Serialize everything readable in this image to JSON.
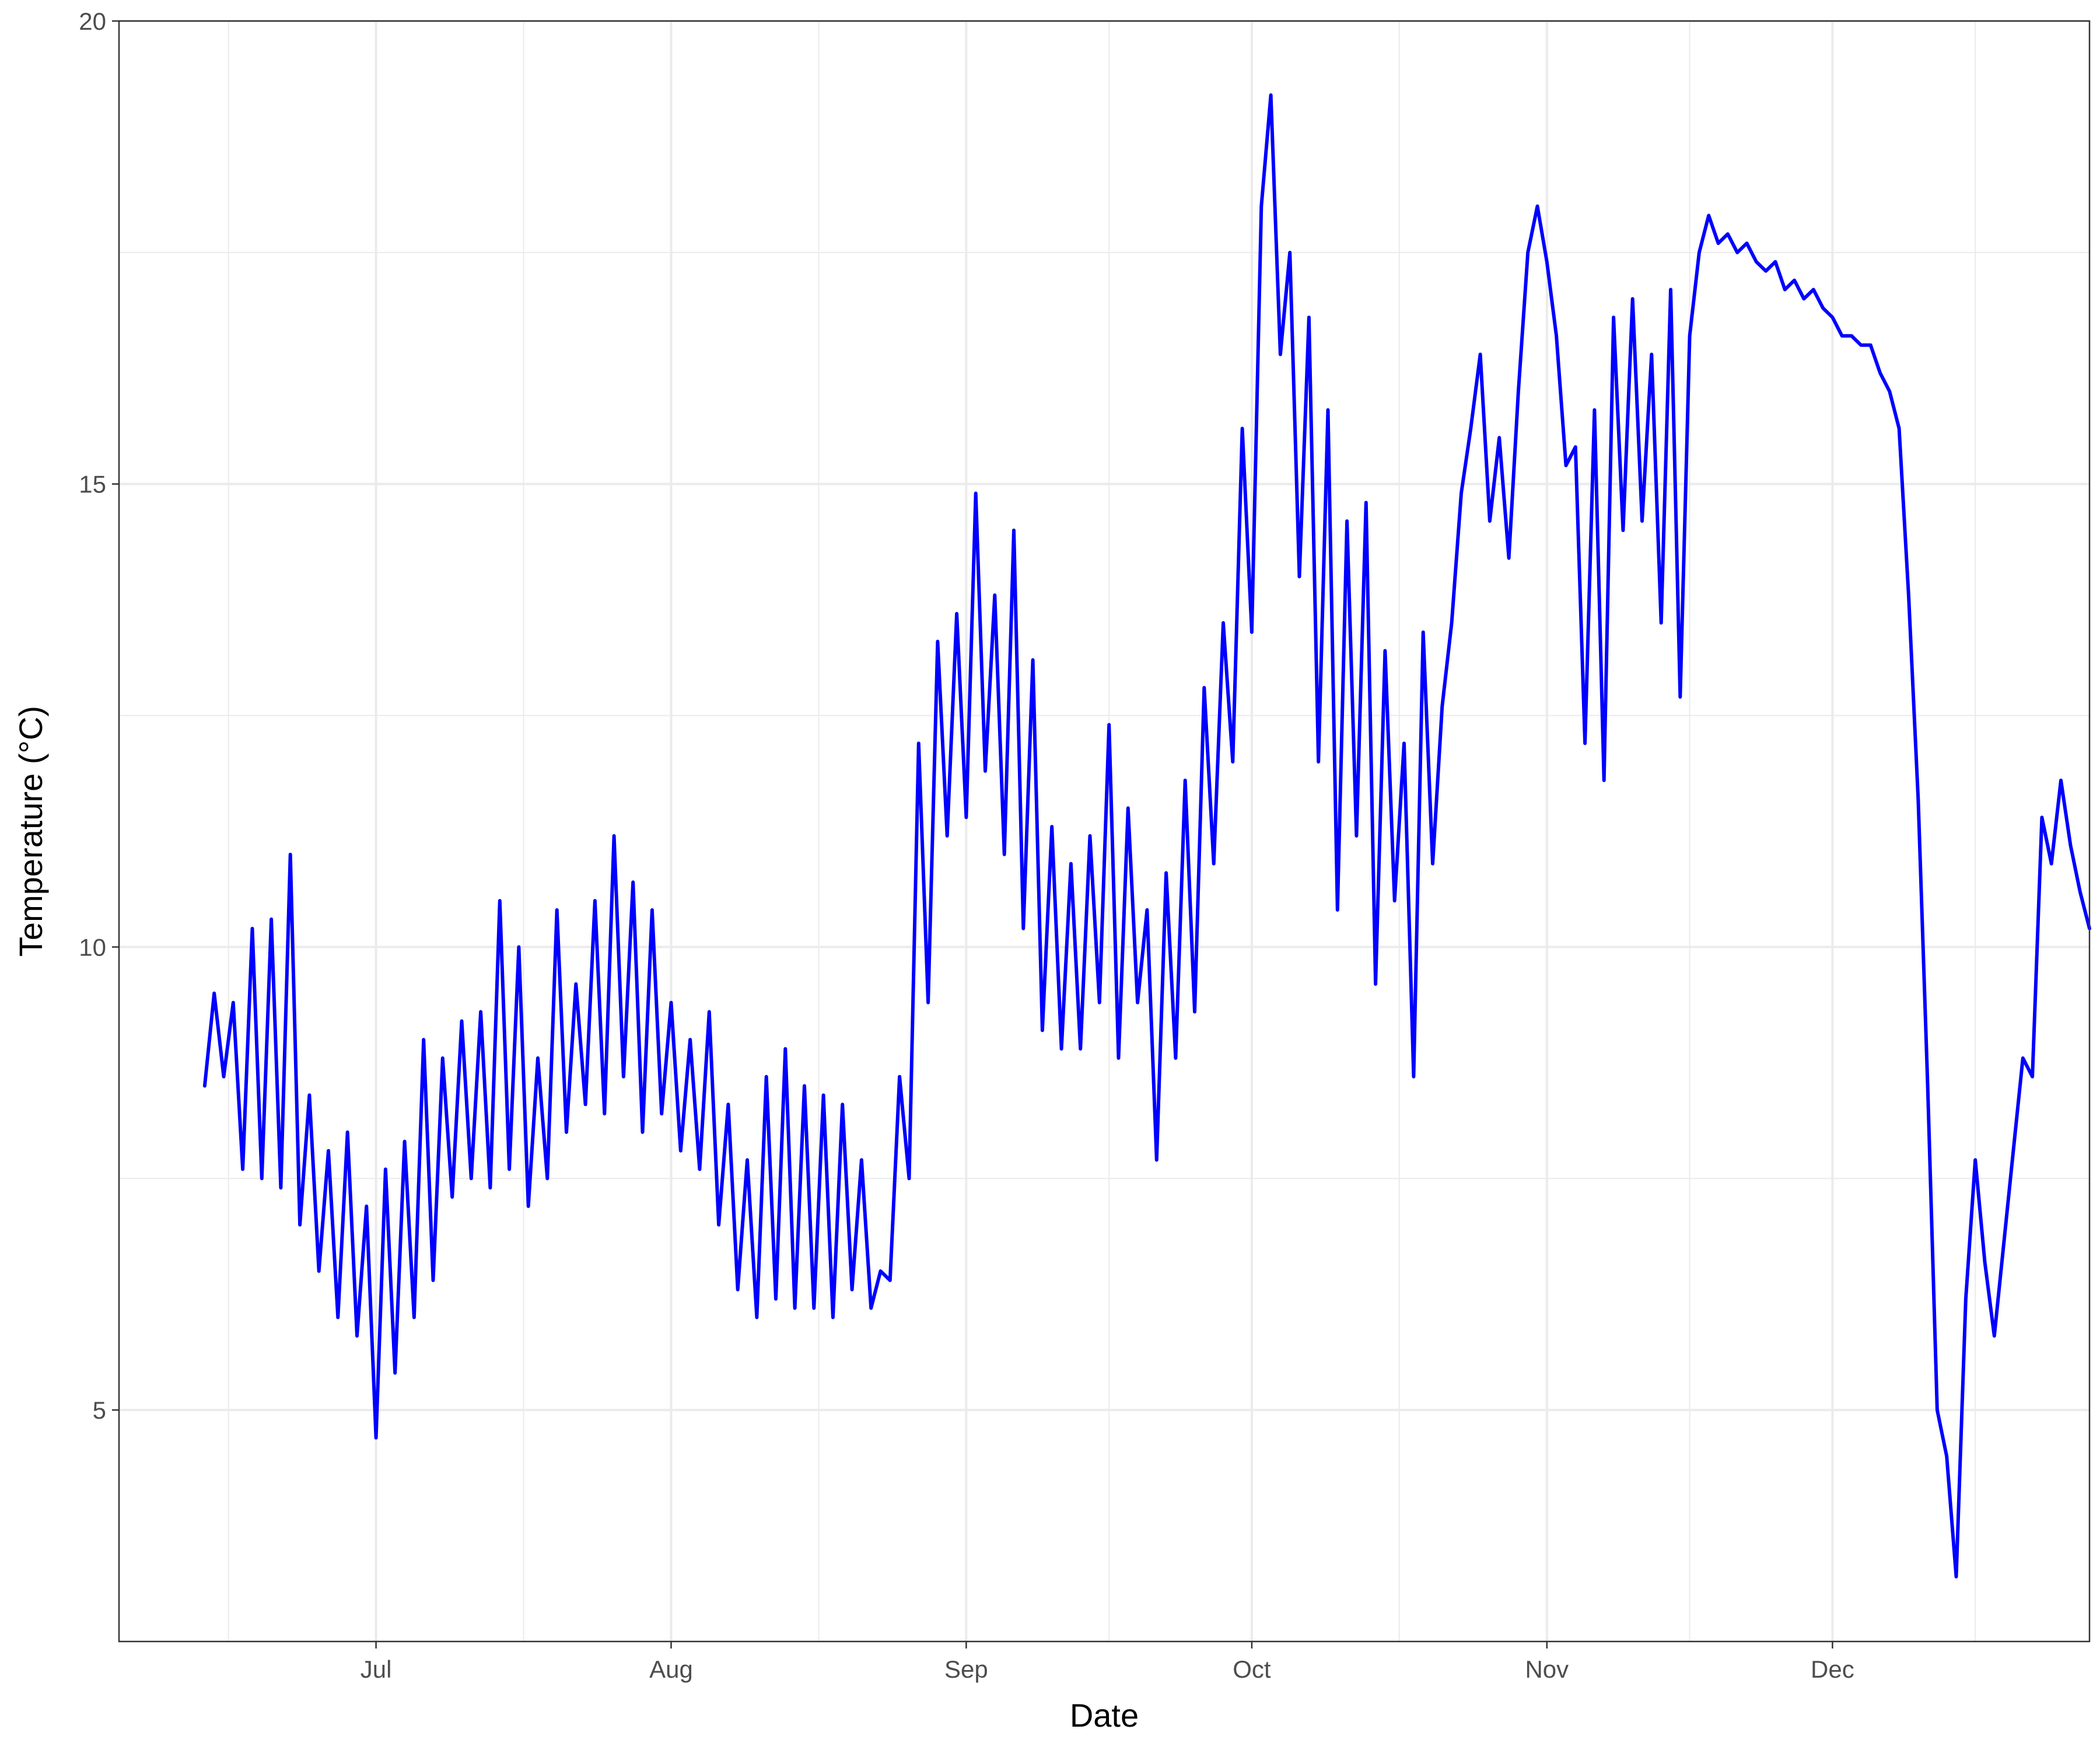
{
  "chart_data": {
    "type": "line",
    "title": "",
    "xlabel": "Date",
    "ylabel": "Temperature (°C)",
    "x_axis": {
      "type": "date",
      "range": [
        "2023-06-04",
        "2023-12-28"
      ],
      "ticks": [
        {
          "date": "2023-07-01",
          "label": "Jul"
        },
        {
          "date": "2023-08-01",
          "label": "Aug"
        },
        {
          "date": "2023-09-01",
          "label": "Sep"
        },
        {
          "date": "2023-10-01",
          "label": "Oct"
        },
        {
          "date": "2023-11-01",
          "label": "Nov"
        },
        {
          "date": "2023-12-01",
          "label": "Dec"
        }
      ]
    },
    "y_axis": {
      "range": [
        2.5,
        20
      ],
      "ticks": [
        5,
        10,
        15,
        20
      ]
    },
    "grid": true,
    "legend": "none",
    "series": [
      {
        "color": "#0000ff",
        "points": [
          [
            "2023-06-13",
            8.5
          ],
          [
            "2023-06-14",
            9.5
          ],
          [
            "2023-06-15",
            8.6
          ],
          [
            "2023-06-16",
            9.4
          ],
          [
            "2023-06-17",
            7.6
          ],
          [
            "2023-06-18",
            10.2
          ],
          [
            "2023-06-19",
            7.5
          ],
          [
            "2023-06-20",
            10.3
          ],
          [
            "2023-06-21",
            7.4
          ],
          [
            "2023-06-22",
            11.0
          ],
          [
            "2023-06-23",
            7.0
          ],
          [
            "2023-06-24",
            8.4
          ],
          [
            "2023-06-25",
            6.5
          ],
          [
            "2023-06-26",
            7.8
          ],
          [
            "2023-06-27",
            6.0
          ],
          [
            "2023-06-28",
            8.0
          ],
          [
            "2023-06-29",
            5.8
          ],
          [
            "2023-06-30",
            7.2
          ],
          [
            "2023-07-01",
            4.7
          ],
          [
            "2023-07-02",
            7.6
          ],
          [
            "2023-07-03",
            5.4
          ],
          [
            "2023-07-04",
            7.9
          ],
          [
            "2023-07-05",
            6.0
          ],
          [
            "2023-07-06",
            9.0
          ],
          [
            "2023-07-07",
            6.4
          ],
          [
            "2023-07-08",
            8.8
          ],
          [
            "2023-07-09",
            7.3
          ],
          [
            "2023-07-10",
            9.2
          ],
          [
            "2023-07-11",
            7.5
          ],
          [
            "2023-07-12",
            9.3
          ],
          [
            "2023-07-13",
            7.4
          ],
          [
            "2023-07-14",
            10.5
          ],
          [
            "2023-07-15",
            7.6
          ],
          [
            "2023-07-16",
            10.0
          ],
          [
            "2023-07-17",
            7.2
          ],
          [
            "2023-07-18",
            8.8
          ],
          [
            "2023-07-19",
            7.5
          ],
          [
            "2023-07-20",
            10.4
          ],
          [
            "2023-07-21",
            8.0
          ],
          [
            "2023-07-22",
            9.6
          ],
          [
            "2023-07-23",
            8.3
          ],
          [
            "2023-07-24",
            10.5
          ],
          [
            "2023-07-25",
            8.2
          ],
          [
            "2023-07-26",
            11.2
          ],
          [
            "2023-07-27",
            8.6
          ],
          [
            "2023-07-28",
            10.7
          ],
          [
            "2023-07-29",
            8.0
          ],
          [
            "2023-07-30",
            10.4
          ],
          [
            "2023-07-31",
            8.2
          ],
          [
            "2023-08-01",
            9.4
          ],
          [
            "2023-08-02",
            7.8
          ],
          [
            "2023-08-03",
            9.0
          ],
          [
            "2023-08-04",
            7.6
          ],
          [
            "2023-08-05",
            9.3
          ],
          [
            "2023-08-06",
            7.0
          ],
          [
            "2023-08-07",
            8.3
          ],
          [
            "2023-08-08",
            6.3
          ],
          [
            "2023-08-09",
            7.7
          ],
          [
            "2023-08-10",
            6.0
          ],
          [
            "2023-08-11",
            8.6
          ],
          [
            "2023-08-12",
            6.2
          ],
          [
            "2023-08-13",
            8.9
          ],
          [
            "2023-08-14",
            6.1
          ],
          [
            "2023-08-15",
            8.5
          ],
          [
            "2023-08-16",
            6.1
          ],
          [
            "2023-08-17",
            8.4
          ],
          [
            "2023-08-18",
            6.0
          ],
          [
            "2023-08-19",
            8.3
          ],
          [
            "2023-08-20",
            6.3
          ],
          [
            "2023-08-21",
            7.7
          ],
          [
            "2023-08-22",
            6.1
          ],
          [
            "2023-08-23",
            6.5
          ],
          [
            "2023-08-24",
            6.4
          ],
          [
            "2023-08-25",
            8.6
          ],
          [
            "2023-08-26",
            7.5
          ],
          [
            "2023-08-27",
            12.2
          ],
          [
            "2023-08-28",
            9.4
          ],
          [
            "2023-08-29",
            13.3
          ],
          [
            "2023-08-30",
            11.2
          ],
          [
            "2023-08-31",
            13.6
          ],
          [
            "2023-09-01",
            11.4
          ],
          [
            "2023-09-02",
            14.9
          ],
          [
            "2023-09-03",
            11.9
          ],
          [
            "2023-09-04",
            13.8
          ],
          [
            "2023-09-05",
            11.0
          ],
          [
            "2023-09-06",
            14.5
          ],
          [
            "2023-09-07",
            10.2
          ],
          [
            "2023-09-08",
            13.1
          ],
          [
            "2023-09-09",
            9.1
          ],
          [
            "2023-09-10",
            11.3
          ],
          [
            "2023-09-11",
            8.9
          ],
          [
            "2023-09-12",
            10.9
          ],
          [
            "2023-09-13",
            8.9
          ],
          [
            "2023-09-14",
            11.2
          ],
          [
            "2023-09-15",
            9.4
          ],
          [
            "2023-09-16",
            12.4
          ],
          [
            "2023-09-17",
            8.8
          ],
          [
            "2023-09-18",
            11.5
          ],
          [
            "2023-09-19",
            9.4
          ],
          [
            "2023-09-20",
            10.4
          ],
          [
            "2023-09-21",
            7.7
          ],
          [
            "2023-09-22",
            10.8
          ],
          [
            "2023-09-23",
            8.8
          ],
          [
            "2023-09-24",
            11.8
          ],
          [
            "2023-09-25",
            9.3
          ],
          [
            "2023-09-26",
            12.8
          ],
          [
            "2023-09-27",
            10.9
          ],
          [
            "2023-09-28",
            13.5
          ],
          [
            "2023-09-29",
            12.0
          ],
          [
            "2023-09-30",
            15.6
          ],
          [
            "2023-10-01",
            13.4
          ],
          [
            "2023-10-02",
            18.0
          ],
          [
            "2023-10-03",
            19.2
          ],
          [
            "2023-10-04",
            16.4
          ],
          [
            "2023-10-05",
            17.5
          ],
          [
            "2023-10-06",
            14.0
          ],
          [
            "2023-10-07",
            16.8
          ],
          [
            "2023-10-08",
            12.0
          ],
          [
            "2023-10-09",
            15.8
          ],
          [
            "2023-10-10",
            10.4
          ],
          [
            "2023-10-11",
            14.6
          ],
          [
            "2023-10-12",
            11.2
          ],
          [
            "2023-10-13",
            14.8
          ],
          [
            "2023-10-14",
            9.6
          ],
          [
            "2023-10-15",
            13.2
          ],
          [
            "2023-10-16",
            10.5
          ],
          [
            "2023-10-17",
            12.2
          ],
          [
            "2023-10-18",
            8.6
          ],
          [
            "2023-10-19",
            13.4
          ],
          [
            "2023-10-20",
            10.9
          ],
          [
            "2023-10-21",
            12.6
          ],
          [
            "2023-10-22",
            13.5
          ],
          [
            "2023-10-23",
            14.9
          ],
          [
            "2023-10-24",
            15.6
          ],
          [
            "2023-10-25",
            16.4
          ],
          [
            "2023-10-26",
            14.6
          ],
          [
            "2023-10-27",
            15.5
          ],
          [
            "2023-10-28",
            14.2
          ],
          [
            "2023-10-29",
            16.0
          ],
          [
            "2023-10-30",
            17.5
          ],
          [
            "2023-10-31",
            18.0
          ],
          [
            "2023-11-01",
            17.4
          ],
          [
            "2023-11-02",
            16.6
          ],
          [
            "2023-11-03",
            15.2
          ],
          [
            "2023-11-04",
            15.4
          ],
          [
            "2023-11-05",
            12.2
          ],
          [
            "2023-11-06",
            15.8
          ],
          [
            "2023-11-07",
            11.8
          ],
          [
            "2023-11-08",
            16.8
          ],
          [
            "2023-11-09",
            14.5
          ],
          [
            "2023-11-10",
            17.0
          ],
          [
            "2023-11-11",
            14.6
          ],
          [
            "2023-11-12",
            16.4
          ],
          [
            "2023-11-13",
            13.5
          ],
          [
            "2023-11-14",
            17.1
          ],
          [
            "2023-11-15",
            12.7
          ],
          [
            "2023-11-16",
            16.6
          ],
          [
            "2023-11-17",
            17.5
          ],
          [
            "2023-11-18",
            17.9
          ],
          [
            "2023-11-19",
            17.6
          ],
          [
            "2023-11-20",
            17.7
          ],
          [
            "2023-11-21",
            17.5
          ],
          [
            "2023-11-22",
            17.6
          ],
          [
            "2023-11-23",
            17.4
          ],
          [
            "2023-11-24",
            17.3
          ],
          [
            "2023-11-25",
            17.4
          ],
          [
            "2023-11-26",
            17.1
          ],
          [
            "2023-11-27",
            17.2
          ],
          [
            "2023-11-28",
            17.0
          ],
          [
            "2023-11-29",
            17.1
          ],
          [
            "2023-11-30",
            16.9
          ],
          [
            "2023-12-01",
            16.8
          ],
          [
            "2023-12-02",
            16.6
          ],
          [
            "2023-12-03",
            16.6
          ],
          [
            "2023-12-04",
            16.5
          ],
          [
            "2023-12-05",
            16.5
          ],
          [
            "2023-12-06",
            16.2
          ],
          [
            "2023-12-07",
            16.0
          ],
          [
            "2023-12-08",
            15.6
          ],
          [
            "2023-12-09",
            13.8
          ],
          [
            "2023-12-10",
            11.6
          ],
          [
            "2023-12-11",
            8.5
          ],
          [
            "2023-12-12",
            5.0
          ],
          [
            "2023-12-13",
            4.5
          ],
          [
            "2023-12-14",
            3.2
          ],
          [
            "2023-12-15",
            6.2
          ],
          [
            "2023-12-16",
            7.7
          ],
          [
            "2023-12-17",
            6.6
          ],
          [
            "2023-12-18",
            5.8
          ],
          [
            "2023-12-19",
            6.8
          ],
          [
            "2023-12-20",
            7.8
          ],
          [
            "2023-12-21",
            8.8
          ],
          [
            "2023-12-22",
            8.6
          ],
          [
            "2023-12-23",
            11.4
          ],
          [
            "2023-12-24",
            10.9
          ],
          [
            "2023-12-25",
            11.8
          ],
          [
            "2023-12-26",
            11.1
          ],
          [
            "2023-12-27",
            10.6
          ],
          [
            "2023-12-28",
            10.2
          ]
        ]
      }
    ]
  }
}
